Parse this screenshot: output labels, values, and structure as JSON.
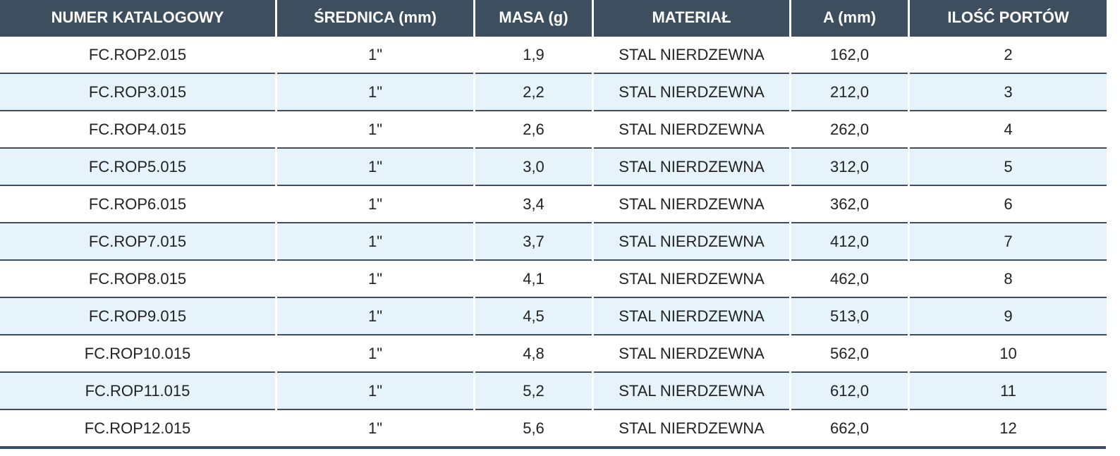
{
  "table": {
    "header": [
      "NUMER KATALOGOWY",
      "ŚREDNICA (mm)",
      "MASA (g)",
      "MATERIAŁ",
      "A (mm)",
      "ILOŚĆ PORTÓW"
    ],
    "rows": [
      [
        "FC.ROP2.015",
        "1\"",
        "1,9",
        "STAL NIERDZEWNA",
        "162,0",
        "2"
      ],
      [
        "FC.ROP3.015",
        "1\"",
        "2,2",
        "STAL NIERDZEWNA",
        "212,0",
        "3"
      ],
      [
        "FC.ROP4.015",
        "1\"",
        "2,6",
        "STAL NIERDZEWNA",
        "262,0",
        "4"
      ],
      [
        "FC.ROP5.015",
        "1\"",
        "3,0",
        "STAL NIERDZEWNA",
        "312,0",
        "5"
      ],
      [
        "FC.ROP6.015",
        "1\"",
        "3,4",
        "STAL NIERDZEWNA",
        "362,0",
        "6"
      ],
      [
        "FC.ROP7.015",
        "1\"",
        "3,7",
        "STAL NIERDZEWNA",
        "412,0",
        "7"
      ],
      [
        "FC.ROP8.015",
        "1\"",
        "4,1",
        "STAL NIERDZEWNA",
        "462,0",
        "8"
      ],
      [
        "FC.ROP9.015",
        "1\"",
        "4,5",
        "STAL NIERDZEWNA",
        "513,0",
        "9"
      ],
      [
        "FC.ROP10.015",
        "1\"",
        "4,8",
        "STAL NIERDZEWNA",
        "562,0",
        "10"
      ],
      [
        "FC.ROP11.015",
        "1\"",
        "5,2",
        "STAL NIERDZEWNA",
        "612,0",
        "11"
      ],
      [
        "FC.ROP12.015",
        "1\"",
        "5,6",
        "STAL NIERDZEWNA",
        "662,0",
        "12"
      ]
    ]
  }
}
